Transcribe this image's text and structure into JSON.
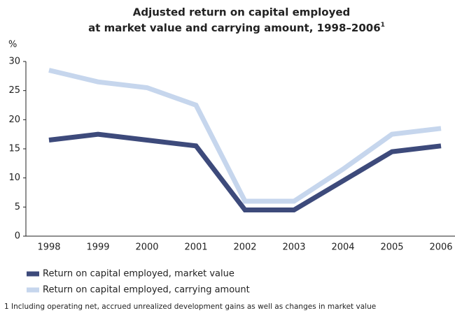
{
  "chart_data": {
    "type": "line",
    "title": [
      "Adjusted return on capital employed",
      "at market value and carrying amount, 1998–2006"
    ],
    "title_superscript": "1",
    "y_axis_label": "%",
    "categories": [
      "1998",
      "1999",
      "2000",
      "2001",
      "2002",
      "2003",
      "2004",
      "2005",
      "2006"
    ],
    "series": [
      {
        "name": "Return on capital employed, market value",
        "color": "#3d4a7b",
        "values": [
          16.5,
          17.5,
          16.5,
          15.5,
          4.5,
          4.5,
          9.5,
          14.5,
          15.5
        ]
      },
      {
        "name": "Return on capital employed, carrying amount",
        "color": "#c6d6ed",
        "values": [
          28.5,
          26.5,
          25.5,
          22.5,
          6,
          6,
          11.5,
          17.5,
          18.5
        ]
      }
    ],
    "ylim": [
      0,
      30
    ],
    "yticks": [
      0,
      5,
      10,
      15,
      20,
      25,
      30
    ],
    "grid": false,
    "footnote": "1 Including operating net, accrued unrealized development gains as well as changes in market value"
  }
}
